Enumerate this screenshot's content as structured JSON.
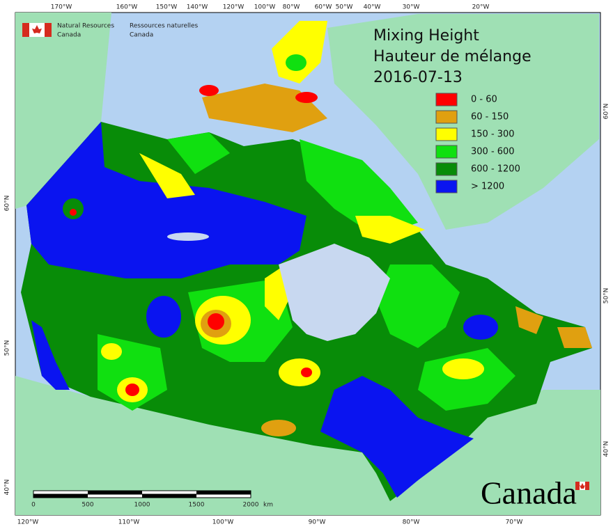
{
  "agency": {
    "en": [
      "Natural Resources",
      "Canada"
    ],
    "fr": [
      "Ressources naturelles",
      "Canada"
    ]
  },
  "title": [
    "Mixing Height",
    "Hauteur de mélange",
    "2016-07-13"
  ],
  "legend": [
    {
      "label": "0 - 60",
      "color": "#ff0000"
    },
    {
      "label": "60 - 150",
      "color": "#e0a010"
    },
    {
      "label": "150 - 300",
      "color": "#ffff00"
    },
    {
      "label": "300 - 600",
      "color": "#10e010"
    },
    {
      "label": "600 - 1200",
      "color": "#088c08"
    },
    {
      "label": "> 1200",
      "color": "#0a14f0"
    }
  ],
  "top_labels": [
    "170°W",
    "160°W",
    "150°W",
    "140°W",
    "120°W",
    "100°W",
    "80°W",
    "60°W",
    "50°W",
    "40°W",
    "30°W",
    "20°W"
  ],
  "bottom_labels": [
    "120°W",
    "110°W",
    "100°W",
    "90°W",
    "80°W",
    "70°W"
  ],
  "left_labels": [
    "60°N",
    "50°N",
    "40°N"
  ],
  "right_labels": [
    "60°N",
    "50°N",
    "40°N"
  ],
  "scale": {
    "ticks": [
      "0",
      "500",
      "1000",
      "1500",
      "2000"
    ],
    "unit": "km"
  },
  "wordmark": "Canada"
}
